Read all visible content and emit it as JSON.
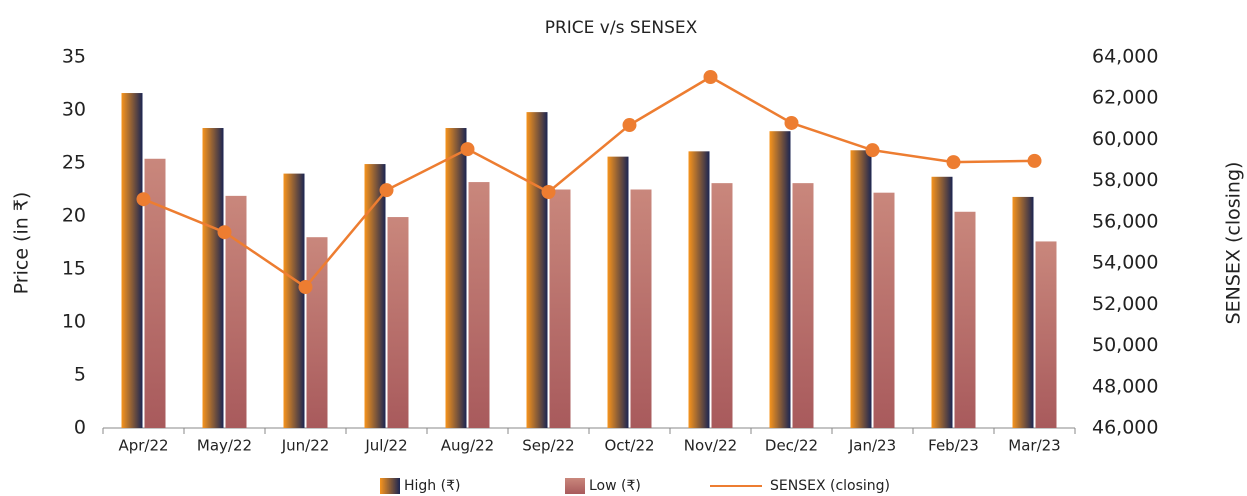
{
  "chart_data": {
    "type": "bar",
    "title": "PRICE v/s SENSEX",
    "categories": [
      "Apr/22",
      "May/22",
      "Jun/22",
      "Jul/22",
      "Aug/22",
      "Sep/22",
      "Oct/22",
      "Nov/22",
      "Dec/22",
      "Jan/23",
      "Feb/23",
      "Mar/23"
    ],
    "series": [
      {
        "name": "High (₹)",
        "type": "bar",
        "color": [
          "#f7941d",
          "#1b2552"
        ],
        "gradient": "horizontal",
        "values": [
          31.6,
          28.3,
          24.0,
          24.9,
          28.3,
          29.8,
          25.6,
          26.1,
          28.0,
          26.2,
          23.7,
          21.8
        ]
      },
      {
        "name": "Low (₹)",
        "type": "bar",
        "color": [
          "#c9877c",
          "#a85a5c"
        ],
        "gradient": "vertical",
        "values": [
          25.4,
          21.9,
          18.0,
          19.9,
          23.2,
          22.5,
          22.5,
          23.1,
          23.1,
          22.2,
          20.4,
          17.6
        ]
      },
      {
        "name": "SENSEX (closing)",
        "type": "line",
        "axis": "y2",
        "color": "#ed7d31",
        "values": [
          57100,
          55500,
          52840,
          57540,
          59530,
          57450,
          60700,
          63030,
          60800,
          59480,
          58900,
          58960
        ]
      }
    ],
    "ylabel": "Price (in ₹)",
    "y2label": "SENSEX (closing)",
    "ylim": [
      0,
      35
    ],
    "yticks": [
      0,
      5,
      10,
      15,
      20,
      25,
      30,
      35
    ],
    "y2lim": [
      46000,
      64000
    ],
    "y2ticks": [
      {
        "value": 46000,
        "label": "46,000"
      },
      {
        "value": 48000,
        "label": "48,000"
      },
      {
        "value": 50000,
        "label": "50,000"
      },
      {
        "value": 52000,
        "label": "52,000"
      },
      {
        "value": 54000,
        "label": "54,000"
      },
      {
        "value": 56000,
        "label": "56,000"
      },
      {
        "value": 58000,
        "label": "58,000"
      },
      {
        "value": 60000,
        "label": "60,000"
      },
      {
        "value": 62000,
        "label": "62,000"
      },
      {
        "value": 64000,
        "label": "64,000"
      }
    ],
    "grid": false,
    "legend": "bottom"
  }
}
